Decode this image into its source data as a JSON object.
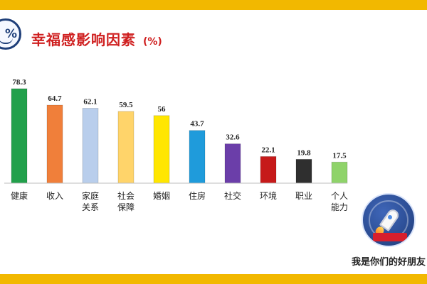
{
  "title": "幸福感影响因素",
  "unit": "(%)",
  "corner_badge": "%",
  "caption": "我是你们的好朋友",
  "colors": {
    "frame": "#f2b800",
    "title": "#cf1f1f",
    "axis": "#999999"
  },
  "chart_data": {
    "type": "bar",
    "title": "幸福感影响因素",
    "unit": "(%)",
    "categories": [
      "健康",
      "收入",
      "家庭关系",
      "社会保障",
      "婚姻",
      "住房",
      "社交",
      "环境",
      "职业",
      "个人能力"
    ],
    "category_lines": [
      [
        "健康"
      ],
      [
        "收入"
      ],
      [
        "家庭",
        "关系"
      ],
      [
        "社会",
        "保障"
      ],
      [
        "婚姻"
      ],
      [
        "住房"
      ],
      [
        "社交"
      ],
      [
        "环境"
      ],
      [
        "职业"
      ],
      [
        "个人",
        "能力"
      ]
    ],
    "values": [
      78.3,
      64.7,
      62.1,
      59.5,
      56,
      43.7,
      32.6,
      22.1,
      19.8,
      17.5
    ],
    "value_labels": [
      "78.3",
      "64.7",
      "62.1",
      "59.5",
      "56",
      "43.7",
      "32.6",
      "22.1",
      "19.8",
      "17.5"
    ],
    "colors": [
      "#22a04b",
      "#f07f3a",
      "#b9ceec",
      "#ffd46a",
      "#ffe600",
      "#1f9bdb",
      "#6b3ea9",
      "#c61a1a",
      "#2f2f2f",
      "#8fd36a"
    ],
    "ylim": [
      0,
      80
    ],
    "grid": false,
    "legend": "none"
  }
}
